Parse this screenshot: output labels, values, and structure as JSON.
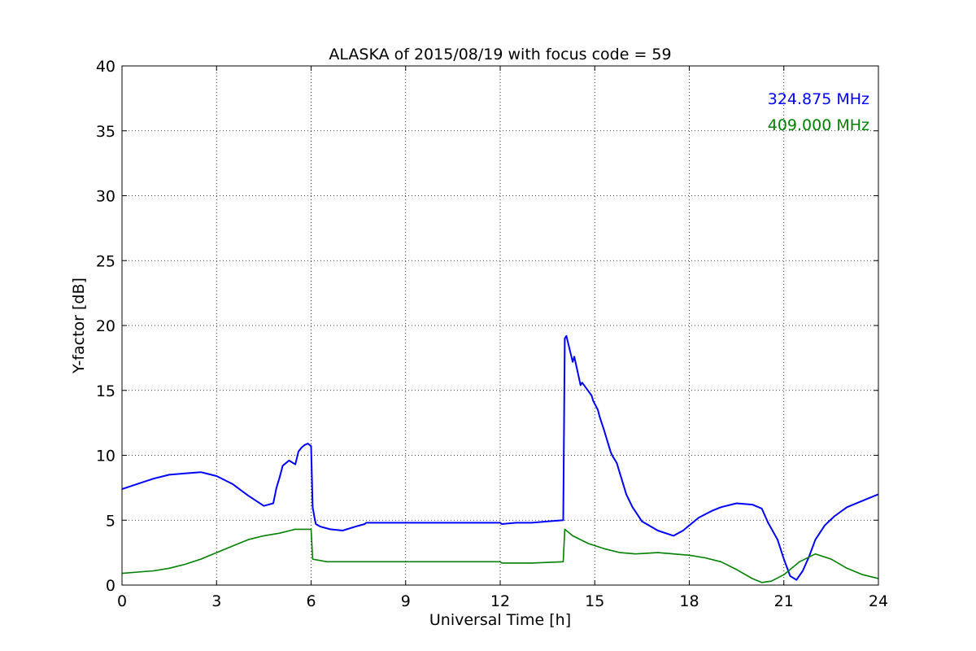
{
  "chart_data": {
    "type": "line",
    "title": "ALASKA of 2015/08/19 with focus code = 59",
    "xlabel": "Universal Time [h]",
    "ylabel": "Y-factor [dB]",
    "xlim": [
      0,
      24
    ],
    "ylim": [
      0,
      40
    ],
    "xticks": [
      0,
      3,
      6,
      9,
      12,
      15,
      18,
      21,
      24
    ],
    "yticks": [
      0,
      5,
      10,
      15,
      20,
      25,
      30,
      35,
      40
    ],
    "grid": true,
    "legend_placement": "top-right",
    "series": [
      {
        "name": "324.875 MHz",
        "color": "#0000ff",
        "x": [
          0,
          0.5,
          1,
          1.5,
          2,
          2.5,
          3,
          3.5,
          4,
          4.5,
          4.8,
          4.9,
          5,
          5.1,
          5.3,
          5.5,
          5.6,
          5.7,
          5.8,
          5.9,
          6.0,
          6.05,
          6.1,
          6.15,
          6.3,
          6.6,
          7.0,
          7.4,
          7.7,
          7.75,
          12.0,
          12.05,
          12.5,
          13,
          13.5,
          14.0,
          14.05,
          14.1,
          14.3,
          14.35,
          14.55,
          14.6,
          14.9,
          14.95,
          15.1,
          15.15,
          15.3,
          15.35,
          15.5,
          15.55,
          15.7,
          15.75,
          15.9,
          16.0,
          16.2,
          16.5,
          17.0,
          17.5,
          17.8,
          18.0,
          18.3,
          18.7,
          19.0,
          19.5,
          20.0,
          20.3,
          20.5,
          20.8,
          21.0,
          21.2,
          21.4,
          21.6,
          21.8,
          22.0,
          22.3,
          22.6,
          23.0,
          23.5,
          24.0
        ],
        "y": [
          7.4,
          7.8,
          8.2,
          8.5,
          8.6,
          8.7,
          8.4,
          7.8,
          6.9,
          6.1,
          6.3,
          7.5,
          8.3,
          9.2,
          9.6,
          9.3,
          10.3,
          10.6,
          10.8,
          10.9,
          10.7,
          6.0,
          5.3,
          4.7,
          4.5,
          4.3,
          4.2,
          4.5,
          4.7,
          4.8,
          4.8,
          4.7,
          4.8,
          4.8,
          4.9,
          5.0,
          19.0,
          19.2,
          17.2,
          17.6,
          15.4,
          15.6,
          14.6,
          14.2,
          13.5,
          13.0,
          11.9,
          11.5,
          10.3,
          10.0,
          9.4,
          9.0,
          7.8,
          7.0,
          6.0,
          4.9,
          4.2,
          3.8,
          4.2,
          4.6,
          5.2,
          5.7,
          6.0,
          6.3,
          6.2,
          5.9,
          4.8,
          3.5,
          2.0,
          0.7,
          0.4,
          1.1,
          2.2,
          3.5,
          4.6,
          5.3,
          6.0,
          6.5,
          7.0
        ]
      },
      {
        "name": "409.000 MHz",
        "color": "#008000",
        "x": [
          0,
          0.5,
          1,
          1.5,
          2,
          2.5,
          3,
          3.5,
          4,
          4.5,
          5,
          5.5,
          6,
          6.05,
          6.5,
          7.0,
          7.7,
          7.75,
          12.0,
          12.05,
          13,
          14.0,
          14.05,
          14.3,
          14.8,
          15.3,
          15.8,
          16.3,
          17,
          17.5,
          18,
          18.5,
          19,
          19.5,
          20.0,
          20.3,
          20.6,
          21.0,
          21.5,
          22.0,
          22.5,
          23.0,
          23.5,
          24.0
        ],
        "y": [
          0.9,
          1.0,
          1.1,
          1.3,
          1.6,
          2.0,
          2.5,
          3.0,
          3.5,
          3.8,
          4.0,
          4.3,
          4.3,
          2.0,
          1.8,
          1.8,
          1.8,
          1.8,
          1.8,
          1.7,
          1.7,
          1.8,
          4.3,
          3.8,
          3.2,
          2.8,
          2.5,
          2.4,
          2.5,
          2.4,
          2.3,
          2.1,
          1.8,
          1.2,
          0.5,
          0.2,
          0.3,
          0.8,
          1.8,
          2.4,
          2.0,
          1.3,
          0.8,
          0.5
        ]
      }
    ]
  }
}
